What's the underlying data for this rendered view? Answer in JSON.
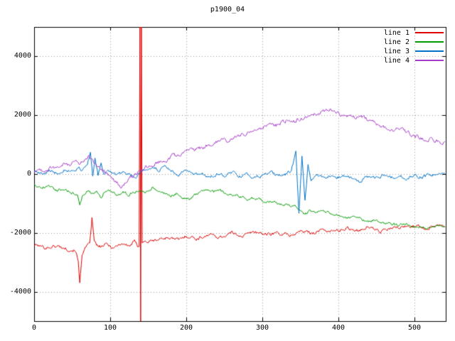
{
  "chart_data": {
    "type": "line",
    "title": "p1900_04",
    "xlabel": "",
    "ylabel": "",
    "xlim": [
      0,
      541
    ],
    "ylim": [
      -5000,
      5000
    ],
    "x_ticks": [
      "0",
      "100",
      "200",
      "300",
      "400",
      "500"
    ],
    "y_ticks": [
      "4000",
      "2000",
      "0",
      "-2000",
      "-4000"
    ],
    "x_tick_values": [
      0,
      100,
      200,
      300,
      400,
      500
    ],
    "y_tick_values": [
      4000,
      2000,
      0,
      -2000,
      -4000
    ],
    "grid": true,
    "grid_style": "dotted",
    "grid_color": "#999999",
    "border_color": "#000000",
    "background": "#ffffff",
    "legend_position": "top-right",
    "series": [
      {
        "name": "line 1",
        "color": "#dd0000",
        "noise": 60,
        "seed": 101,
        "keypoints": [
          [
            0,
            -2400
          ],
          [
            15,
            -2500
          ],
          [
            30,
            -2450
          ],
          [
            45,
            -2550
          ],
          [
            55,
            -2600
          ],
          [
            58,
            -3000
          ],
          [
            60,
            -3700
          ],
          [
            63,
            -2700
          ],
          [
            68,
            -2500
          ],
          [
            73,
            -2400
          ],
          [
            76,
            -1500
          ],
          [
            79,
            -2300
          ],
          [
            85,
            -2500
          ],
          [
            95,
            -2400
          ],
          [
            105,
            -2500
          ],
          [
            115,
            -2350
          ],
          [
            125,
            -2450
          ],
          [
            132,
            -2300
          ],
          [
            136,
            -2450
          ],
          [
            138,
            -2400
          ],
          [
            139,
            5200
          ],
          [
            140,
            -5200
          ],
          [
            141,
            5200
          ],
          [
            142,
            -2300
          ],
          [
            150,
            -2300
          ],
          [
            160,
            -2250
          ],
          [
            175,
            -2150
          ],
          [
            190,
            -2250
          ],
          [
            200,
            -2100
          ],
          [
            215,
            -2200
          ],
          [
            230,
            -2050
          ],
          [
            245,
            -2150
          ],
          [
            260,
            -2000
          ],
          [
            275,
            -2100
          ],
          [
            290,
            -1950
          ],
          [
            305,
            -2050
          ],
          [
            320,
            -2000
          ],
          [
            335,
            -2100
          ],
          [
            350,
            -1950
          ],
          [
            365,
            -2000
          ],
          [
            380,
            -1900
          ],
          [
            395,
            -1950
          ],
          [
            410,
            -1850
          ],
          [
            425,
            -1900
          ],
          [
            440,
            -1800
          ],
          [
            455,
            -1950
          ],
          [
            470,
            -1850
          ],
          [
            485,
            -1800
          ],
          [
            500,
            -1750
          ],
          [
            515,
            -1850
          ],
          [
            530,
            -1700
          ],
          [
            540,
            -1750
          ]
        ]
      },
      {
        "name": "line 2",
        "color": "#009a00",
        "noise": 50,
        "seed": 202,
        "keypoints": [
          [
            0,
            -350
          ],
          [
            10,
            -450
          ],
          [
            20,
            -400
          ],
          [
            30,
            -550
          ],
          [
            40,
            -500
          ],
          [
            50,
            -650
          ],
          [
            57,
            -700
          ],
          [
            60,
            -1100
          ],
          [
            64,
            -700
          ],
          [
            70,
            -550
          ],
          [
            76,
            -650
          ],
          [
            82,
            -600
          ],
          [
            88,
            -850
          ],
          [
            92,
            -600
          ],
          [
            100,
            -550
          ],
          [
            108,
            -700
          ],
          [
            116,
            -600
          ],
          [
            124,
            -700
          ],
          [
            132,
            -600
          ],
          [
            140,
            -550
          ],
          [
            148,
            -600
          ],
          [
            156,
            -450
          ],
          [
            164,
            -550
          ],
          [
            172,
            -650
          ],
          [
            180,
            -750
          ],
          [
            188,
            -650
          ],
          [
            196,
            -800
          ],
          [
            204,
            -850
          ],
          [
            212,
            -700
          ],
          [
            220,
            -600
          ],
          [
            228,
            -500
          ],
          [
            236,
            -600
          ],
          [
            244,
            -550
          ],
          [
            252,
            -650
          ],
          [
            260,
            -700
          ],
          [
            270,
            -750
          ],
          [
            280,
            -850
          ],
          [
            290,
            -800
          ],
          [
            300,
            -900
          ],
          [
            310,
            -950
          ],
          [
            320,
            -1000
          ],
          [
            330,
            -1050
          ],
          [
            340,
            -1100
          ],
          [
            350,
            -1200
          ],
          [
            356,
            -1400
          ],
          [
            362,
            -1250
          ],
          [
            370,
            -1300
          ],
          [
            380,
            -1250
          ],
          [
            390,
            -1350
          ],
          [
            400,
            -1400
          ],
          [
            410,
            -1500
          ],
          [
            420,
            -1450
          ],
          [
            430,
            -1550
          ],
          [
            440,
            -1600
          ],
          [
            450,
            -1550
          ],
          [
            460,
            -1650
          ],
          [
            470,
            -1700
          ],
          [
            480,
            -1750
          ],
          [
            490,
            -1700
          ],
          [
            500,
            -1800
          ],
          [
            510,
            -1750
          ],
          [
            520,
            -1850
          ],
          [
            530,
            -1750
          ],
          [
            540,
            -1800
          ]
        ]
      },
      {
        "name": "line 3",
        "color": "#0072c8",
        "noise": 60,
        "seed": 303,
        "keypoints": [
          [
            0,
            100
          ],
          [
            10,
            0
          ],
          [
            20,
            100
          ],
          [
            30,
            50
          ],
          [
            40,
            150
          ],
          [
            50,
            100
          ],
          [
            58,
            200
          ],
          [
            64,
            150
          ],
          [
            70,
            350
          ],
          [
            74,
            700
          ],
          [
            77,
            -100
          ],
          [
            80,
            500
          ],
          [
            84,
            -50
          ],
          [
            88,
            300
          ],
          [
            92,
            0
          ],
          [
            100,
            100
          ],
          [
            108,
            -50
          ],
          [
            116,
            100
          ],
          [
            124,
            0
          ],
          [
            132,
            -100
          ],
          [
            140,
            50
          ],
          [
            148,
            150
          ],
          [
            156,
            250
          ],
          [
            164,
            150
          ],
          [
            172,
            200
          ],
          [
            180,
            100
          ],
          [
            190,
            0
          ],
          [
            200,
            100
          ],
          [
            210,
            -50
          ],
          [
            220,
            50
          ],
          [
            230,
            -100
          ],
          [
            240,
            0
          ],
          [
            250,
            -50
          ],
          [
            260,
            50
          ],
          [
            270,
            -50
          ],
          [
            280,
            0
          ],
          [
            290,
            -100
          ],
          [
            300,
            -50
          ],
          [
            310,
            50
          ],
          [
            320,
            -50
          ],
          [
            330,
            0
          ],
          [
            338,
            100
          ],
          [
            344,
            800
          ],
          [
            348,
            -1300
          ],
          [
            352,
            600
          ],
          [
            356,
            -900
          ],
          [
            360,
            300
          ],
          [
            364,
            -200
          ],
          [
            370,
            0
          ],
          [
            380,
            -100
          ],
          [
            390,
            -50
          ],
          [
            400,
            -100
          ],
          [
            410,
            -50
          ],
          [
            420,
            -150
          ],
          [
            428,
            -300
          ],
          [
            436,
            -100
          ],
          [
            444,
            -50
          ],
          [
            452,
            -150
          ],
          [
            460,
            -50
          ],
          [
            470,
            -100
          ],
          [
            480,
            -50
          ],
          [
            490,
            -150
          ],
          [
            500,
            -50
          ],
          [
            510,
            -100
          ],
          [
            520,
            -50
          ],
          [
            530,
            0
          ],
          [
            540,
            50
          ]
        ]
      },
      {
        "name": "line 4",
        "color": "#a53cc8",
        "noise": 70,
        "seed": 404,
        "keypoints": [
          [
            0,
            50
          ],
          [
            8,
            150
          ],
          [
            16,
            100
          ],
          [
            24,
            250
          ],
          [
            32,
            200
          ],
          [
            40,
            350
          ],
          [
            48,
            300
          ],
          [
            54,
            500
          ],
          [
            60,
            350
          ],
          [
            66,
            450
          ],
          [
            72,
            600
          ],
          [
            78,
            400
          ],
          [
            84,
            250
          ],
          [
            90,
            150
          ],
          [
            96,
            0
          ],
          [
            102,
            -150
          ],
          [
            108,
            -300
          ],
          [
            114,
            -400
          ],
          [
            120,
            -250
          ],
          [
            126,
            -150
          ],
          [
            132,
            -50
          ],
          [
            138,
            50
          ],
          [
            144,
            150
          ],
          [
            150,
            250
          ],
          [
            158,
            350
          ],
          [
            166,
            450
          ],
          [
            174,
            500
          ],
          [
            182,
            600
          ],
          [
            190,
            650
          ],
          [
            198,
            750
          ],
          [
            206,
            800
          ],
          [
            214,
            850
          ],
          [
            222,
            900
          ],
          [
            230,
            1000
          ],
          [
            238,
            1050
          ],
          [
            246,
            1150
          ],
          [
            254,
            1100
          ],
          [
            262,
            1200
          ],
          [
            270,
            1300
          ],
          [
            278,
            1350
          ],
          [
            286,
            1450
          ],
          [
            294,
            1500
          ],
          [
            302,
            1600
          ],
          [
            310,
            1700
          ],
          [
            318,
            1650
          ],
          [
            326,
            1750
          ],
          [
            334,
            1850
          ],
          [
            342,
            1800
          ],
          [
            350,
            1900
          ],
          [
            358,
            1950
          ],
          [
            366,
            2000
          ],
          [
            374,
            2050
          ],
          [
            382,
            2150
          ],
          [
            390,
            2200
          ],
          [
            398,
            2100
          ],
          [
            406,
            2000
          ],
          [
            414,
            1950
          ],
          [
            422,
            1900
          ],
          [
            430,
            2000
          ],
          [
            438,
            1850
          ],
          [
            446,
            1750
          ],
          [
            454,
            1650
          ],
          [
            462,
            1550
          ],
          [
            470,
            1500
          ],
          [
            478,
            1550
          ],
          [
            486,
            1450
          ],
          [
            494,
            1350
          ],
          [
            502,
            1300
          ],
          [
            510,
            1200
          ],
          [
            516,
            1050
          ],
          [
            522,
            1200
          ],
          [
            528,
            1150
          ],
          [
            534,
            1100
          ],
          [
            540,
            1050
          ]
        ]
      }
    ]
  }
}
